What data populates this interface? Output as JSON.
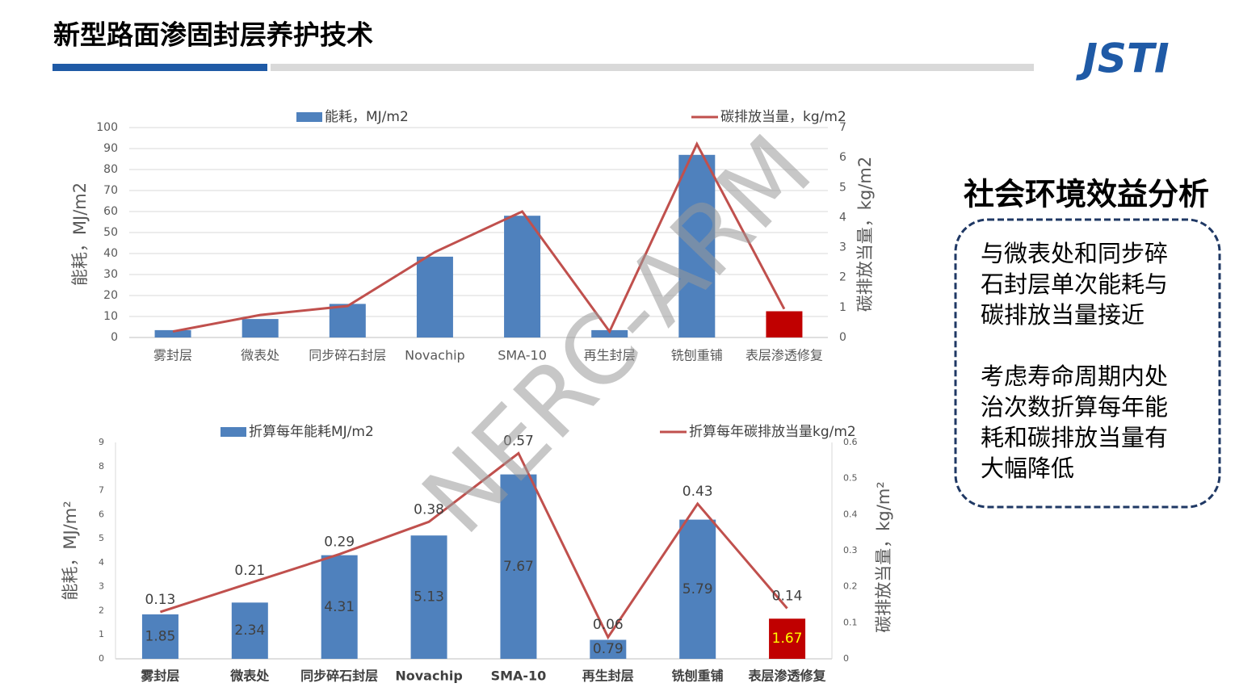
{
  "header": {
    "title": "新型路面渗固封层养护技术",
    "logo": "JSTI"
  },
  "watermark": "NERC-ARM",
  "panel": {
    "heading": "社会环境效益分析",
    "paragraphs": [
      [
        "与微表处和同步碎",
        "石封层单次能耗与",
        "碳排放当量接近"
      ],
      [
        "考虑寿命周期内处",
        "治次数折算每年能",
        "耗和碳排放当量有",
        "大幅降低"
      ]
    ]
  },
  "chart_data": [
    {
      "type": "bar-line",
      "categories": [
        "雾封层",
        "微表处",
        "同步碎石封层",
        "Novachip",
        "SMA-10",
        "再生封层",
        "铣刨重铺",
        "表层渗透修复"
      ],
      "ylabel": "能耗，MJ/m2",
      "y2label": "碳排放当量，kg/m2",
      "ylim": [
        0,
        100
      ],
      "yticks": [
        0,
        10,
        20,
        30,
        40,
        50,
        60,
        70,
        80,
        90,
        100
      ],
      "y2lim": [
        0,
        7
      ],
      "y2ticks": [
        0,
        1,
        2,
        3,
        4,
        5,
        6,
        7
      ],
      "grid": true,
      "bold_categories": false,
      "series": [
        {
          "name": "能耗，MJ/m2",
          "kind": "bar",
          "color": "#4f81bd",
          "colors": [
            "#4f81bd",
            "#4f81bd",
            "#4f81bd",
            "#4f81bd",
            "#4f81bd",
            "#4f81bd",
            "#4f81bd",
            "#c00000"
          ],
          "values": [
            3.5,
            8.8,
            16,
            38.5,
            58,
            3.5,
            87,
            12.5
          ]
        },
        {
          "name": "碳排放当量，kg/m2",
          "kind": "line",
          "axis": "y2",
          "color": "#c0504d",
          "values": [
            0.2,
            0.75,
            1.05,
            2.85,
            4.2,
            0.2,
            6.45,
            0.95
          ]
        }
      ]
    },
    {
      "type": "bar-line",
      "categories": [
        "雾封层",
        "微表处",
        "同步碎石封层",
        "Novachip",
        "SMA-10",
        "再生封层",
        "铣刨重铺",
        "表层渗透修复"
      ],
      "ylabel": "能耗，MJ/m²",
      "y2label": "碳排放当量，kg/m²",
      "ylim": [
        0,
        9
      ],
      "yticks": [
        0,
        1,
        2,
        3,
        4,
        5,
        6,
        7,
        8,
        9
      ],
      "y2lim": [
        0,
        0.6
      ],
      "y2ticks": [
        0,
        0.1,
        0.2,
        0.3,
        0.4,
        0.5,
        0.6
      ],
      "grid": false,
      "bold_categories": true,
      "series": [
        {
          "name": "折算每年能耗MJ/m2",
          "kind": "bar",
          "color": "#4f81bd",
          "colors": [
            "#4f81bd",
            "#4f81bd",
            "#4f81bd",
            "#4f81bd",
            "#4f81bd",
            "#4f81bd",
            "#4f81bd",
            "#c00000"
          ],
          "label_colors": [
            "#404040",
            "#404040",
            "#404040",
            "#404040",
            "#404040",
            "#404040",
            "#404040",
            "#ffff00"
          ],
          "values": [
            1.85,
            2.34,
            4.31,
            5.13,
            7.67,
            0.79,
            5.79,
            1.67
          ]
        },
        {
          "name": "折算每年碳排放当量kg/m2",
          "kind": "line",
          "axis": "y2",
          "color": "#c0504d",
          "show_labels": true,
          "values": [
            0.13,
            0.21,
            0.29,
            0.38,
            0.57,
            0.06,
            0.43,
            0.14
          ]
        }
      ]
    }
  ]
}
